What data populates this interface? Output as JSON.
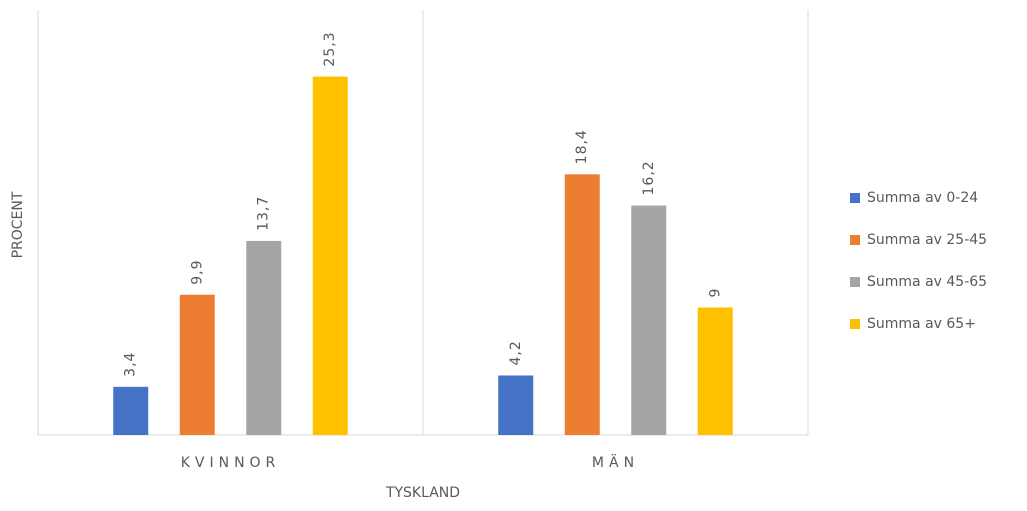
{
  "chart_data": {
    "type": "bar",
    "categories": [
      "KVINNOR",
      "MÄN"
    ],
    "xlabel": "TYSKLAND",
    "ylabel": "PROCENT",
    "ylim": [
      0,
      30
    ],
    "legend": "right",
    "series": [
      {
        "name": "Summa av 0-24",
        "color": "#4472c4",
        "values": [
          3.4,
          4.2
        ],
        "value_labels": [
          "3,4",
          "4,2"
        ]
      },
      {
        "name": "Summa av 25-45",
        "color": "#ed7d31",
        "values": [
          9.9,
          18.4
        ],
        "value_labels": [
          "9,9",
          "18,4"
        ]
      },
      {
        "name": "Summa av 45-65",
        "color": "#a5a5a5",
        "values": [
          13.7,
          16.2
        ],
        "value_labels": [
          "13,7",
          "16,2"
        ]
      },
      {
        "name": "Summa av 65+",
        "color": "#ffc000",
        "values": [
          25.3,
          9
        ],
        "value_labels": [
          "25,3",
          "9"
        ]
      }
    ]
  }
}
